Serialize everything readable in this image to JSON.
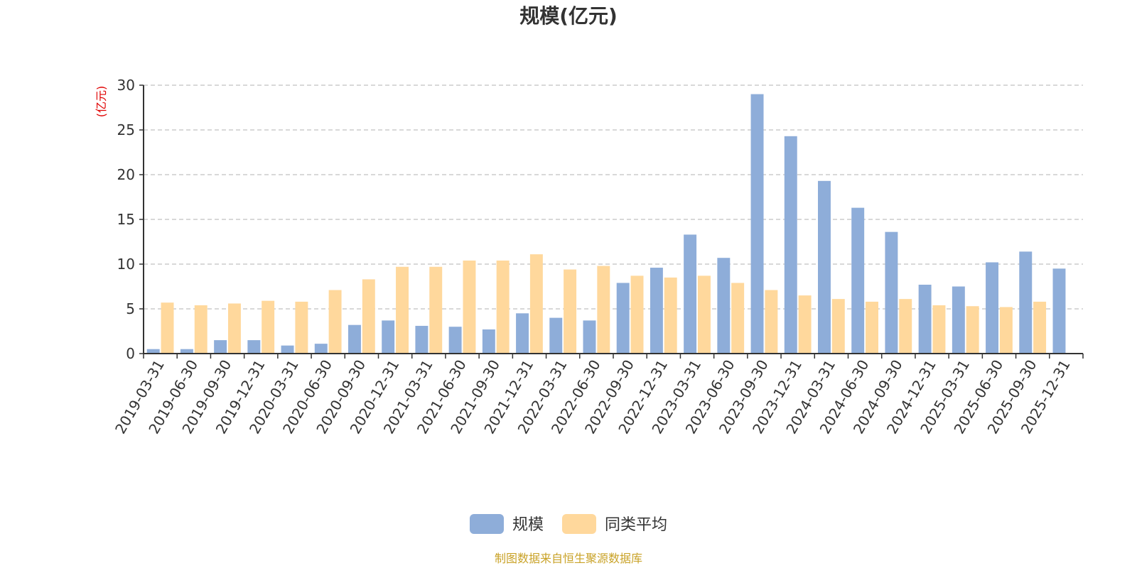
{
  "chart_data": {
    "type": "bar",
    "title": "规模(亿元)",
    "ylabel": "(亿元)",
    "ylim": [
      0,
      30
    ],
    "yticks": [
      0,
      5,
      10,
      15,
      20,
      25,
      30
    ],
    "grid": true,
    "legend_position": "bottom-center",
    "categories": [
      "2019-03-31",
      "2019-06-30",
      "2019-09-30",
      "2019-12-31",
      "2020-03-31",
      "2020-06-30",
      "2020-09-30",
      "2020-12-31",
      "2021-03-31",
      "2021-06-30",
      "2021-09-30",
      "2021-12-31",
      "2022-03-31",
      "2022-06-30",
      "2022-09-30",
      "2022-12-31",
      "2023-03-31",
      "2023-06-30",
      "2023-09-30",
      "2023-12-31",
      "2024-03-31",
      "2024-06-30",
      "2024-09-30",
      "2024-12-31",
      "2025-03-31",
      "2025-06-30",
      "2025-09-30",
      "2025-12-31"
    ],
    "series": [
      {
        "name": "规模",
        "color": "#8eadd9",
        "values": [
          0.5,
          0.5,
          1.5,
          1.5,
          0.9,
          1.1,
          3.2,
          3.7,
          3.1,
          3.0,
          2.7,
          4.5,
          4.0,
          3.7,
          7.9,
          9.6,
          13.3,
          10.7,
          29.0,
          24.3,
          19.3,
          16.3,
          13.6,
          7.7,
          7.5,
          10.2,
          11.4,
          9.5
        ]
      },
      {
        "name": "同类平均",
        "color": "#ffd89c",
        "values": [
          5.7,
          5.4,
          5.6,
          5.9,
          5.8,
          7.1,
          8.3,
          9.7,
          9.7,
          10.4,
          10.4,
          11.1,
          9.4,
          9.8,
          8.7,
          8.5,
          8.7,
          7.9,
          7.1,
          6.5,
          6.1,
          5.8,
          6.1,
          5.4,
          5.3,
          5.2,
          5.8,
          null
        ]
      }
    ]
  },
  "footer": {
    "source": "制图数据来自恒生聚源数据库"
  }
}
